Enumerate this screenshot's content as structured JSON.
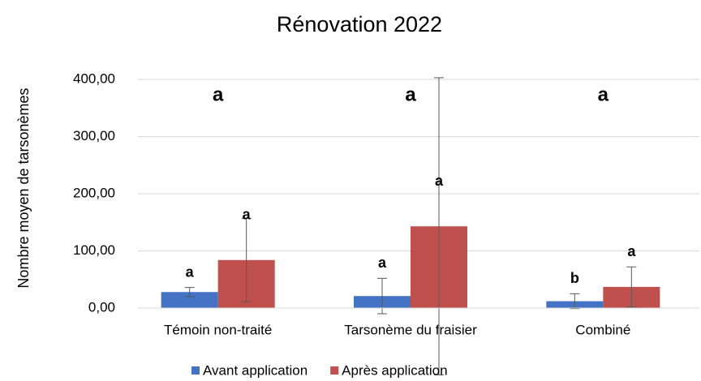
{
  "chart_data": {
    "type": "bar",
    "title": "Rénovation 2022",
    "y_label": "Nombre moyen de tarsonèmes",
    "categories": [
      "Témoin non-traité",
      "Tarsonème du fraisier",
      "Combiné"
    ],
    "group_letters": [
      "a",
      "a",
      "a"
    ],
    "series": [
      {
        "name": "Avant application",
        "color": "#4472c4",
        "values": [
          28,
          21,
          12
        ],
        "errors": [
          8,
          31,
          13
        ],
        "letters": [
          "a",
          "a",
          "b"
        ]
      },
      {
        "name": "Après application",
        "color": "#c0504d",
        "values": [
          84,
          143,
          37
        ],
        "errors": [
          73,
          260,
          35
        ],
        "letters": [
          "a",
          "a",
          "a"
        ]
      }
    ],
    "ylim": [
      0,
      400
    ],
    "yticks": [
      {
        "value": 0,
        "label": "0,00"
      },
      {
        "value": 100,
        "label": "100,00"
      },
      {
        "value": 200,
        "label": "200,00"
      },
      {
        "value": 300,
        "label": "300,00"
      },
      {
        "value": 400,
        "label": "400,00"
      }
    ],
    "grid": true,
    "legend": "bottom"
  }
}
